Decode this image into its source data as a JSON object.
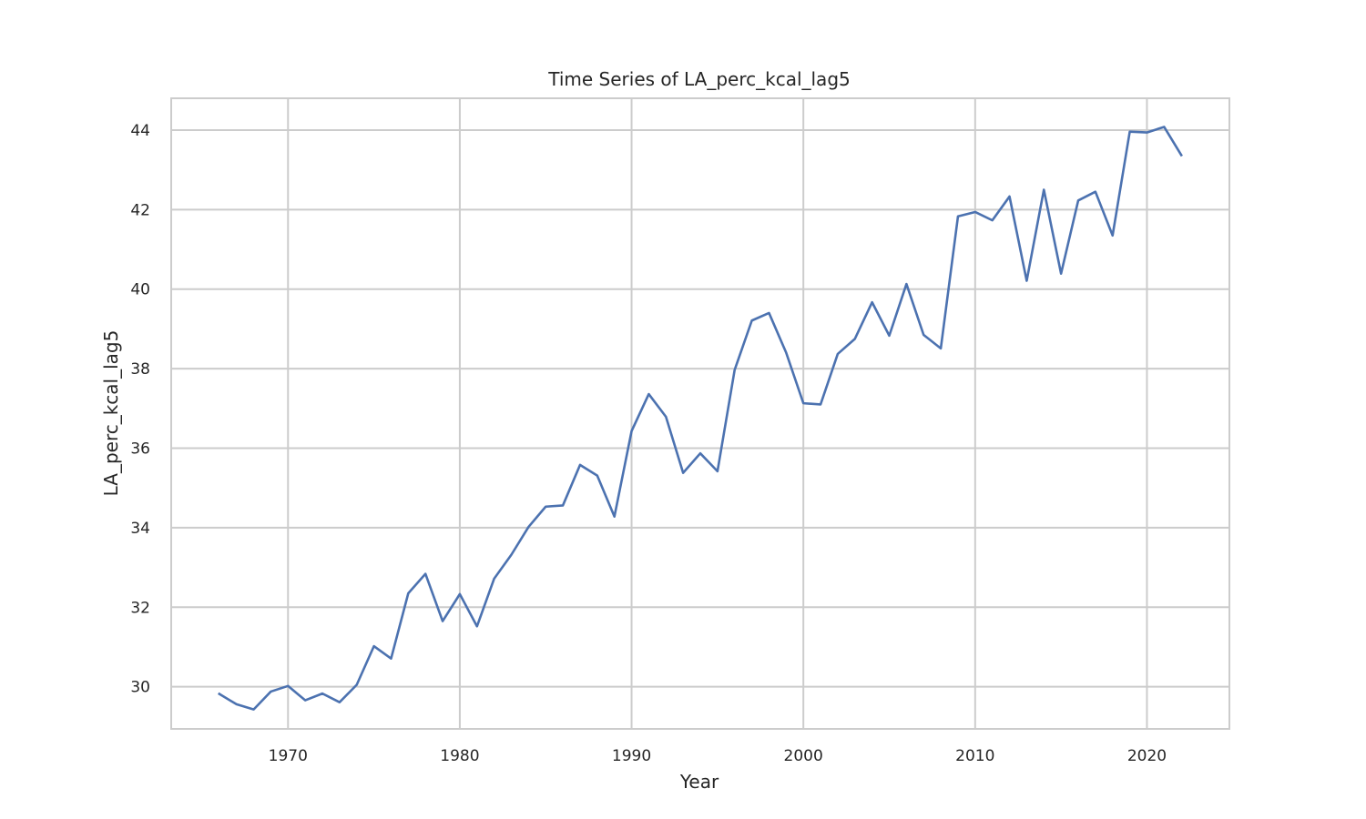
{
  "chart_data": {
    "type": "line",
    "title": "Time Series of LA_perc_kcal_lag5",
    "xlabel": "Year",
    "ylabel": "LA_perc_kcal_lag5",
    "xlim": [
      1963.2,
      2024.8
    ],
    "ylim": [
      28.94,
      44.8
    ],
    "x_ticks": [
      1970,
      1980,
      1990,
      2000,
      2010,
      2020
    ],
    "y_ticks": [
      30,
      32,
      34,
      36,
      38,
      40,
      42,
      44
    ],
    "grid": true,
    "line_color": "#4c72b0",
    "series": [
      {
        "x": [
          1966,
          1967,
          1968,
          1969,
          1970,
          1971,
          1972,
          1973,
          1974,
          1975,
          1976,
          1977,
          1978,
          1979,
          1980,
          1981,
          1982,
          1983,
          1984,
          1985,
          1986,
          1987,
          1988,
          1989,
          1990,
          1991,
          1992,
          1993,
          1994,
          1995,
          1996,
          1997,
          1998,
          1999,
          2000,
          2001,
          2002,
          2003,
          2004,
          2005,
          2006,
          2007,
          2008,
          2009,
          2010,
          2011,
          2012,
          2013,
          2014,
          2015,
          2016,
          2017,
          2018,
          2019,
          2020,
          2021,
          2022
        ],
        "values": [
          29.82,
          29.56,
          29.43,
          29.88,
          30.02,
          29.66,
          29.83,
          29.61,
          30.05,
          31.02,
          30.71,
          32.35,
          32.84,
          31.65,
          32.33,
          31.52,
          32.72,
          33.32,
          34.02,
          34.53,
          34.56,
          35.58,
          35.31,
          34.28,
          36.43,
          37.36,
          36.79,
          35.38,
          35.87,
          35.42,
          37.97,
          39.21,
          39.4,
          38.4,
          37.13,
          37.1,
          38.37,
          38.75,
          39.67,
          38.83,
          40.13,
          38.85,
          38.51,
          41.83,
          41.94,
          41.73,
          42.33,
          40.21,
          42.5,
          40.39,
          42.23,
          42.45,
          41.35,
          43.96,
          43.94,
          44.08,
          43.37
        ]
      }
    ]
  }
}
